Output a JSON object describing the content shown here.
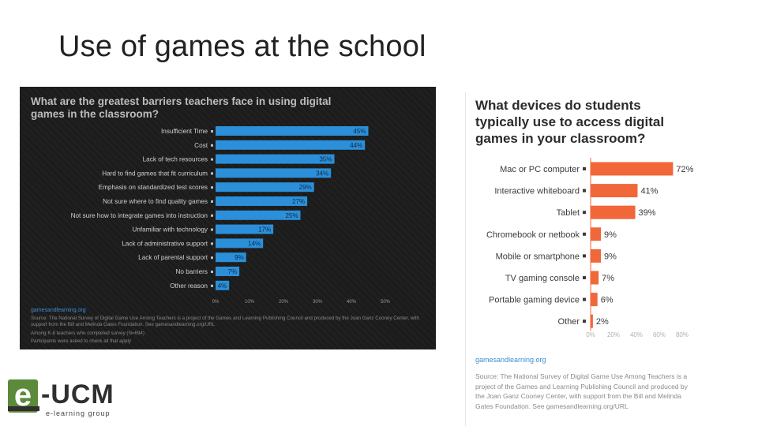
{
  "slide": {
    "title": "Use of games at the school"
  },
  "left_panel": {
    "source_title": "gamesandlearning.org",
    "source": "Source: The National Survey of Digital Game Use Among Teachers is a project of the Games and Learning Publishing Council and produced by the Joan Ganz Cooney Center, with support from the Bill and Melinda Gates Foundation. See gamesandlearning.org/URL",
    "note1": "Among K-8 teachers who completed survey (N=694)",
    "note2": "Participants were asked to check all that apply"
  },
  "right_panel": {
    "source_title": "gamesandlearning.org",
    "source": "Source: The National Survey of Digital Game Use Among Teachers is a project of the Games and Learning Publishing Council and produced by the Joan Ganz Cooney Center, with support from the Bill and Melinda Gates Foundation. See gamesandlearning.org/URL"
  },
  "logo": {
    "mark": "e",
    "name": "-UCM",
    "subtitle": "e-learning group"
  },
  "chart_data": [
    {
      "type": "bar",
      "orientation": "horizontal",
      "title": "What are the greatest barriers teachers face in using digital games in the classroom?",
      "categories": [
        "Insufficient Time",
        "Cost",
        "Lack of tech resources",
        "Hard to find games that fit curriculum",
        "Emphasis on standardized test scores",
        "Not sure where to find quality games",
        "Not sure how to integrate games into instruction",
        "Unfamiliar with technology",
        "Lack of administrative support",
        "Lack of parental support",
        "No barriers",
        "Other reason"
      ],
      "values": [
        45,
        44,
        35,
        34,
        29,
        27,
        25,
        17,
        14,
        9,
        7,
        4
      ],
      "value_labels": [
        "45%",
        "44%",
        "35%",
        "34%",
        "29%",
        "27%",
        "25%",
        "17%",
        "14%",
        "9%",
        "7%",
        "4%"
      ],
      "xlim": [
        0,
        50
      ],
      "xticks": [
        "0%",
        "10%",
        "20%",
        "30%",
        "40%",
        "50%"
      ],
      "bar_color": "#2b8fd9",
      "grid": false
    },
    {
      "type": "bar",
      "orientation": "horizontal",
      "title": "What devices do students typically use to access digital games in your classroom?",
      "categories": [
        "Mac or PC computer",
        "Interactive whiteboard",
        "Tablet",
        "Chromebook or netbook",
        "Mobile or smartphone",
        "TV gaming console",
        "Portable gaming device",
        "Other"
      ],
      "values": [
        72,
        41,
        39,
        9,
        9,
        7,
        6,
        2
      ],
      "value_labels": [
        "72%",
        "41%",
        "39%",
        "9%",
        "9%",
        "7%",
        "6%",
        "2%"
      ],
      "xlim": [
        0,
        80
      ],
      "xticks": [
        "0%",
        "20%",
        "40%",
        "60%",
        "80%"
      ],
      "bar_color": "#f0673a",
      "grid": false
    }
  ]
}
